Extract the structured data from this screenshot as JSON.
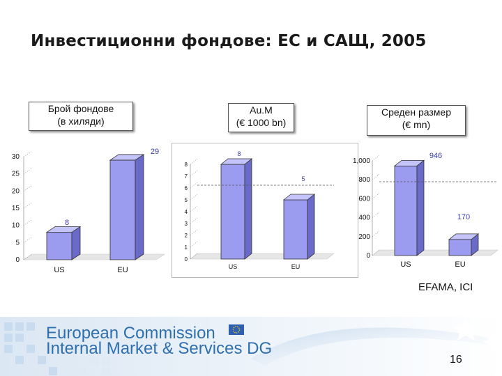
{
  "slide": {
    "title": "Инвестиционни фондове: ЕС и САЩ, 2005",
    "source": "EFAMA, ICI",
    "page_number": "16",
    "footer_line1": "European Commission",
    "footer_line2": "Internal Market & Services DG"
  },
  "callouts": [
    {
      "line1": "Брой фондове",
      "line2": "(в хиляди)"
    },
    {
      "line1": "Au.M",
      "line2": "(€ 1000 bn)"
    },
    {
      "line1": "Среден размер",
      "line2": "(€ mn)"
    }
  ],
  "colors": {
    "bar_front": "#9b9bef",
    "bar_side": "#6a6ac8",
    "bar_top": "#c4c4fa",
    "value_label": "#3b3bb0",
    "footer_blue": "#2f6fae"
  },
  "chart_data": [
    {
      "type": "bar",
      "title": "Брой фондове",
      "subtitle": "(в хиляди)",
      "categories": [
        "US",
        "EU"
      ],
      "values": [
        8,
        29
      ],
      "data_labels": [
        "8",
        "29"
      ],
      "ylim": [
        0,
        30
      ],
      "y_ticks": [
        "0",
        "5",
        "10",
        "15",
        "20",
        "25",
        "30"
      ],
      "y_tick_values": [
        0,
        5,
        10,
        15,
        20,
        25,
        30
      ]
    },
    {
      "type": "bar",
      "title": "Au.M",
      "subtitle": "(€ 1000 bn)",
      "categories": [
        "US",
        "EU"
      ],
      "values": [
        8,
        5
      ],
      "data_labels": [
        "8",
        "5"
      ],
      "ylim": [
        0,
        8
      ],
      "y_ticks": [
        "0",
        "1",
        "2",
        "3",
        "4",
        "5",
        "6",
        "7",
        "8"
      ],
      "y_tick_values": [
        0,
        1,
        2,
        3,
        4,
        5,
        6,
        7,
        8
      ]
    },
    {
      "type": "bar",
      "title": "Среден размер",
      "subtitle": "(€ mn)",
      "categories": [
        "US",
        "EU"
      ],
      "values": [
        946,
        170
      ],
      "data_labels": [
        "946",
        "170"
      ],
      "ylim": [
        0,
        1000
      ],
      "y_ticks": [
        "0",
        "200",
        "400",
        "600",
        "800",
        "1,000"
      ],
      "y_tick_values": [
        0,
        200,
        400,
        600,
        800,
        1000
      ]
    }
  ]
}
